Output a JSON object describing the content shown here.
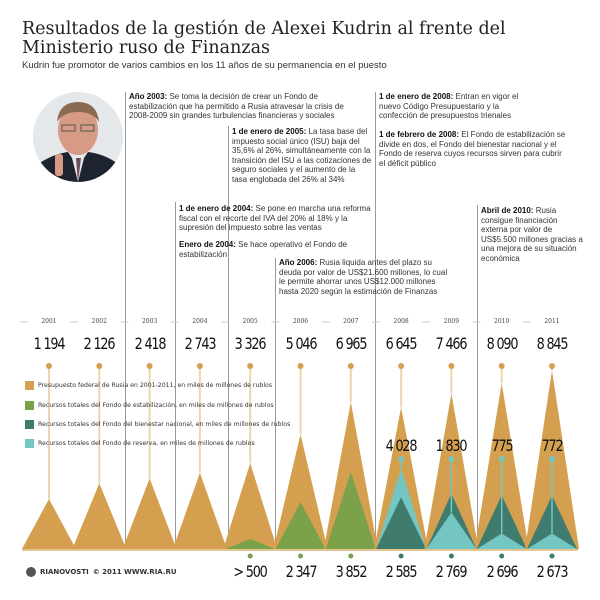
{
  "header": {
    "title": "Resultados de la gestión de Alexei Kudrin al frente del Ministerio ruso de Finanzas",
    "subtitle": "Kudrin fue promotor de varios cambios en los 11 años de su permanencia en el puesto"
  },
  "notes": [
    {
      "date": "Año 2003:",
      "text": " Se toma la decisión de crear un Fondo de estabilización que ha permitido a Rusia atravesar la crisis de 2008-2009 sin grandes turbulencias financieras y sociales"
    },
    {
      "date": "1 de enero de 2005:",
      "text": " La tasa base del impuesto social único (ISU) baja del 35,6% al 26%, simultáneamente con la transición del ISU a las cotizaciones de seguro sociales y el aumento de la tasa englobada del 26% al 34%"
    },
    {
      "date": "1 de enero de 2004:",
      "text": " Se pone en marcha una reforma fiscal con el recorte del IVA del 20% al 18% y la supresión del impuesto sobre las ventas"
    },
    {
      "date": "Enero de 2004:",
      "text": " Se hace operativo el Fondo de estabilización"
    },
    {
      "date": "Año 2006:",
      "text": " Rusia liquida antes del plazo su deuda por valor de US$21.600 millones, lo cual le permite ahorrar unos US$12.000 millones hasta 2020 según la estimación de Finanzas"
    },
    {
      "date": "1 de enero de 2008:",
      "text": " Entran en vigor el nuevo Código Presupuestario y la confección de presupuestos trienales"
    },
    {
      "date": "1 de febrero de 2008:",
      "text": " El Fondo de estabilización se divide en dos, el Fondo del bienestar nacional y el Fondo de reserva cuyos recursos sirven para cubrir el déficit público"
    },
    {
      "date": "Abril de 2010:",
      "text": " Rusia consigue financiación externa por valor de US$5.500 millones gracias a una mejora de su situación económica"
    }
  ],
  "chart_data": {
    "type": "area",
    "categories": [
      "2001",
      "2002",
      "2003",
      "2004",
      "2005",
      "2006",
      "2007",
      "2008",
      "2009",
      "2010",
      "2011"
    ],
    "series": [
      {
        "name": "Presupuesto federal de Rusia en 2001-2011, en miles de millones de rublos",
        "color": "#d4a04f",
        "values": [
          1194,
          2126,
          2418,
          2743,
          3326,
          5046,
          6965,
          6645,
          7466,
          8090,
          8845
        ],
        "labels": [
          "1 194",
          "2 126",
          "2 418",
          "2 743",
          "3 326",
          "5 046",
          "6 965",
          "6 645",
          "7 466",
          "8 090",
          "8 845"
        ]
      },
      {
        "name": "Recursos totales del Fondo de estabilización, en miles de millones de rublos",
        "color": "#7ba24a",
        "values": [
          null,
          null,
          null,
          null,
          500,
          2347,
          3852,
          null,
          null,
          null,
          null
        ],
        "labels": [
          null,
          null,
          null,
          null,
          "> 500",
          "2 347",
          "3 852",
          null,
          null,
          null,
          null
        ]
      },
      {
        "name": "Recursos totales del Fondo del bienestar nacional, en miles de millones de rublos",
        "color": "#3f7c6e",
        "values": [
          null,
          null,
          null,
          null,
          null,
          null,
          null,
          2585,
          2769,
          2696,
          2673
        ],
        "labels": [
          null,
          null,
          null,
          null,
          null,
          null,
          null,
          "2 585",
          "2 769",
          "2 696",
          "2 673"
        ]
      },
      {
        "name": "Recursos totales del Fondo de reserva, en miles de millones de rublos",
        "color": "#74c6c3",
        "values": [
          null,
          null,
          null,
          null,
          null,
          null,
          null,
          4028,
          1830,
          775,
          772
        ],
        "labels": [
          null,
          null,
          null,
          null,
          null,
          null,
          null,
          "4 028",
          "1 830",
          "775",
          "772"
        ]
      }
    ]
  },
  "footer": {
    "brand": "RIANOVOSTI",
    "copyright": "© 2011 WWW.RIA.RU"
  }
}
